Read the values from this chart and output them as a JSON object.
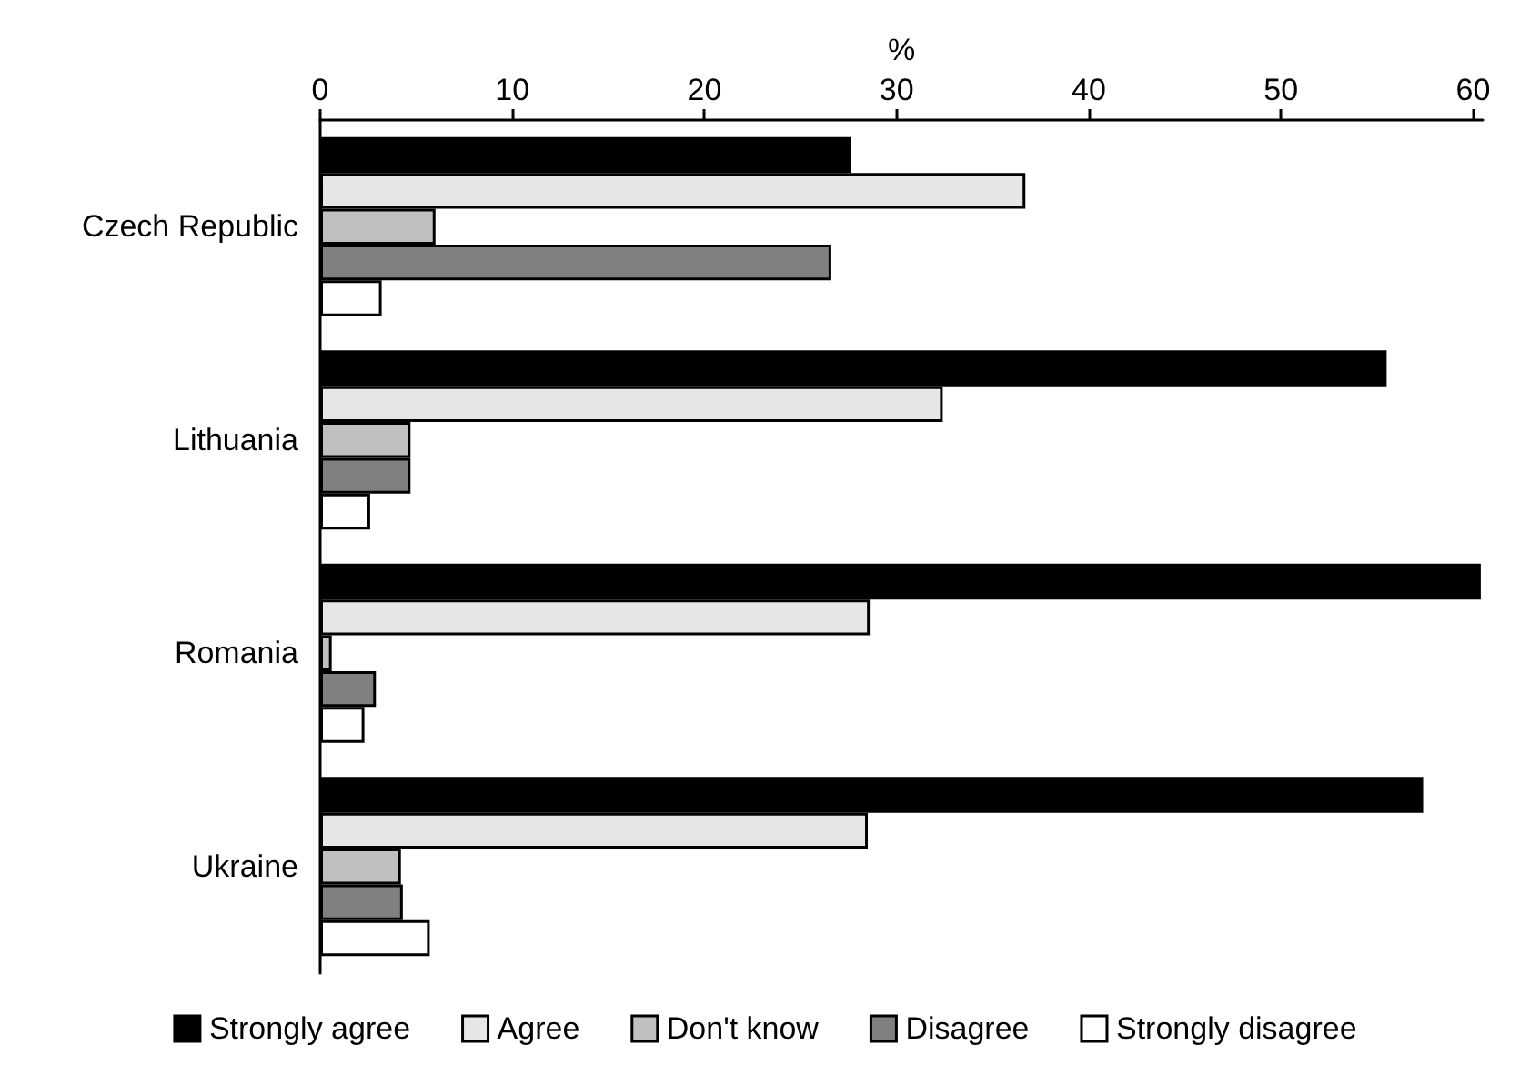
{
  "chart_data": {
    "type": "bar",
    "orientation": "horizontal",
    "xlabel": "%",
    "categories": [
      "Czech Republic",
      "Lithuania",
      "Romania",
      "Ukraine"
    ],
    "series": [
      {
        "name": "Strongly agree",
        "color": "#000000",
        "values": [
          27.6,
          55.5,
          60.4,
          57.4
        ]
      },
      {
        "name": "Agree",
        "color": "#e6e6e6",
        "values": [
          36.7,
          32.4,
          28.6,
          28.5
        ]
      },
      {
        "name": "Don't know",
        "color": "#c0c0c0",
        "values": [
          6.0,
          4.7,
          0.6,
          4.2
        ]
      },
      {
        "name": "Disagree",
        "color": "#808080",
        "values": [
          26.6,
          4.7,
          2.9,
          4.3
        ]
      },
      {
        "name": "Strongly disagree",
        "color": "#ffffff",
        "values": [
          3.2,
          2.6,
          2.3,
          5.7
        ]
      }
    ],
    "xlim": [
      0,
      60.5
    ],
    "xticks": [
      0,
      10,
      20,
      30,
      40,
      50,
      60
    ],
    "grid": false,
    "legend": "bottom"
  }
}
